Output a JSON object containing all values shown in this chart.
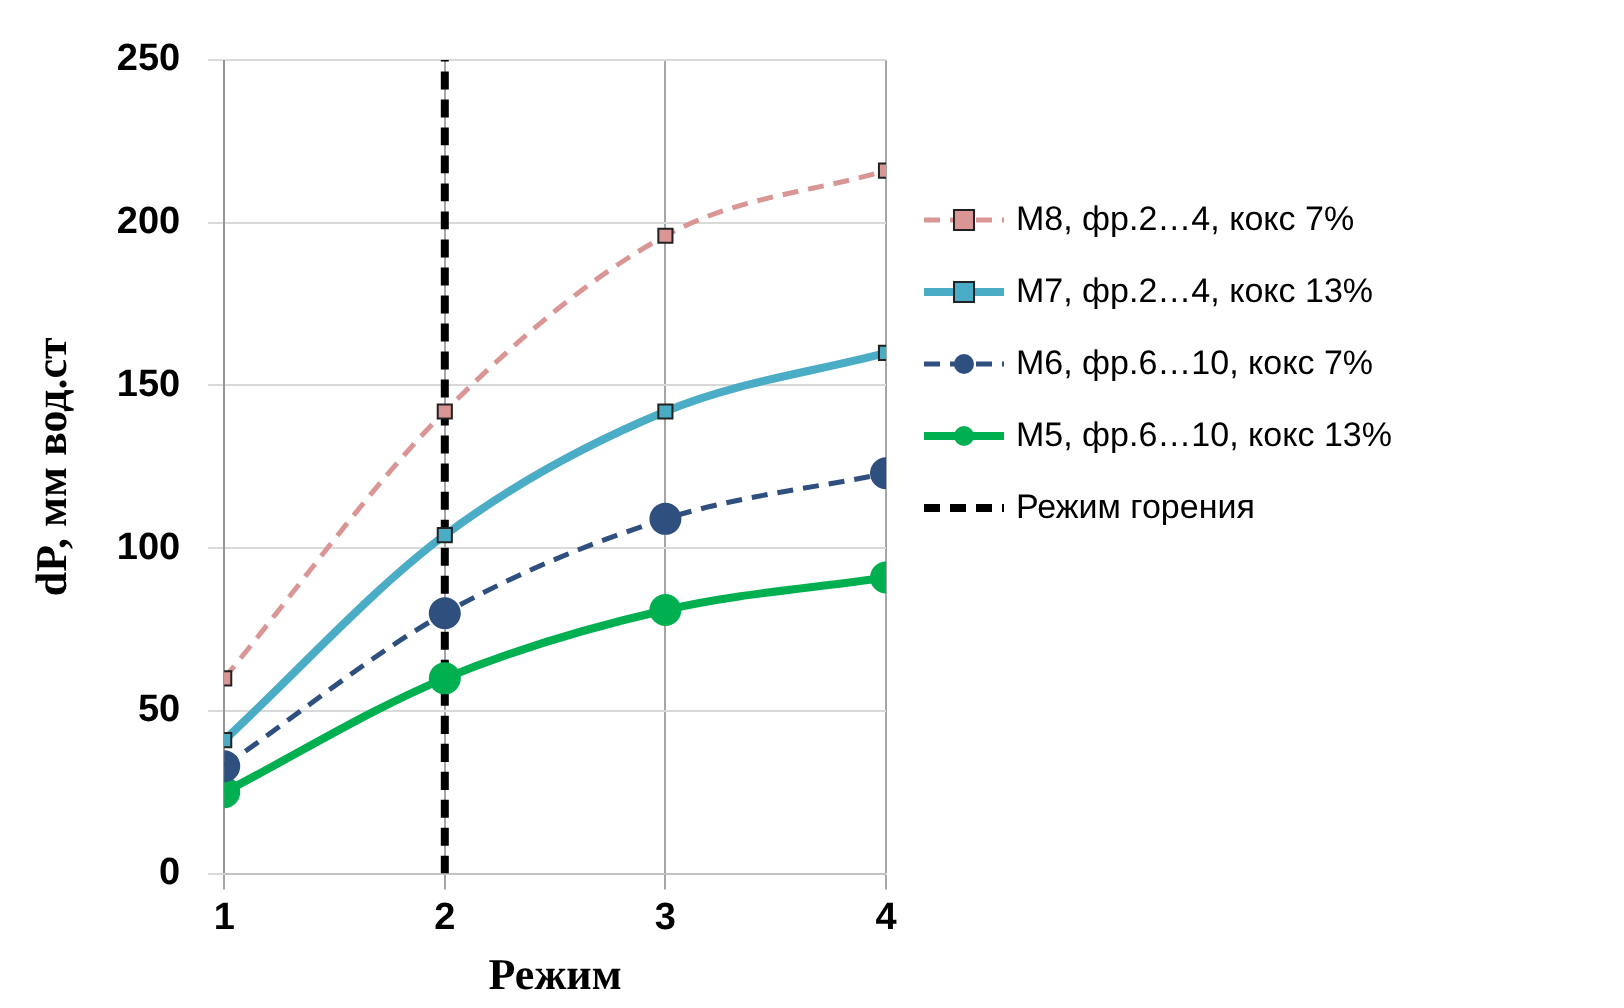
{
  "chart_data": {
    "type": "line",
    "xlabel": "Режим",
    "ylabel": "dP, мм вод.ст",
    "x": [
      1,
      2,
      3,
      4
    ],
    "xlim": [
      1,
      4
    ],
    "xticks": [
      1,
      2,
      3,
      4
    ],
    "ylim": [
      0,
      250
    ],
    "yticks": [
      0,
      50,
      100,
      150,
      200,
      250
    ],
    "grid": true,
    "legend": "right",
    "series": [
      {
        "name": "M8, фр.2…4, кокс 7%",
        "color": "#d99694",
        "values": [
          60,
          142,
          196,
          216
        ],
        "marker": "square",
        "line_style": "dashed"
      },
      {
        "name": "M7, фр.2…4, кокс 13%",
        "color": "#4bacc6",
        "values": [
          41,
          104,
          142,
          160
        ],
        "marker": "square",
        "line_style": "solid"
      },
      {
        "name": "M6, фр.6…10, кокс 7%",
        "color": "#2f4f7f",
        "values": [
          33,
          80,
          109,
          123
        ],
        "marker": "circle",
        "line_style": "dashed"
      },
      {
        "name": "M5, фр.6…10, кокс 13%",
        "color": "#00b050",
        "values": [
          25,
          60,
          81,
          91
        ],
        "marker": "circle",
        "line_style": "solid"
      },
      {
        "name": "Режим горения",
        "color": "#000000",
        "x": [
          2,
          2
        ],
        "values": [
          0,
          250
        ],
        "marker": "none",
        "line_style": "dashed"
      }
    ]
  }
}
